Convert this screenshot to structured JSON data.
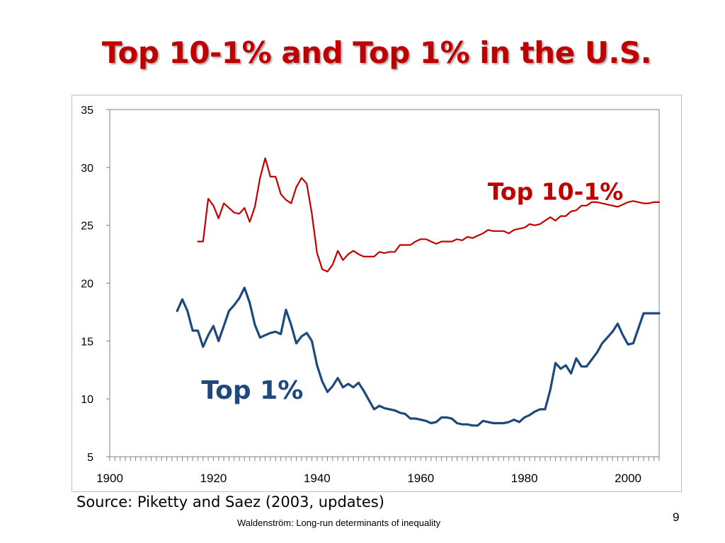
{
  "slide": {
    "title": "Top 10-1% and Top 1% in the U.S.",
    "source": "Source: Piketty and Saez (2003, updates)",
    "footer": "Waldenström: Long-run determinants of inequality",
    "page_number": "9"
  },
  "colors": {
    "title": "#c00000",
    "top10": "#c00000",
    "top1": "#1f497d"
  },
  "chart_data": {
    "type": "line",
    "title": "Top 10-1% and Top 1% in the U.S.",
    "xlabel": "",
    "ylabel": "",
    "xlim": [
      1900,
      2006
    ],
    "ylim": [
      5,
      35
    ],
    "x_ticks": [
      "1900",
      "1920",
      "1940",
      "1960",
      "1980",
      "2000"
    ],
    "y_ticks": [
      "5",
      "10",
      "15",
      "20",
      "25",
      "30",
      "35"
    ],
    "grid": false,
    "legend": "inline labels",
    "series": [
      {
        "name": "Top 10-1%",
        "x": [
          1917,
          1918,
          1919,
          1920,
          1921,
          1922,
          1923,
          1924,
          1925,
          1926,
          1927,
          1928,
          1929,
          1930,
          1931,
          1932,
          1933,
          1934,
          1935,
          1936,
          1937,
          1938,
          1939,
          1940,
          1941,
          1942,
          1943,
          1944,
          1945,
          1946,
          1947,
          1948,
          1949,
          1950,
          1951,
          1952,
          1953,
          1954,
          1955,
          1956,
          1957,
          1958,
          1959,
          1960,
          1961,
          1962,
          1963,
          1964,
          1965,
          1966,
          1967,
          1968,
          1969,
          1970,
          1971,
          1972,
          1973,
          1974,
          1975,
          1976,
          1977,
          1978,
          1979,
          1980,
          1981,
          1982,
          1983,
          1984,
          1985,
          1986,
          1987,
          1988,
          1989,
          1990,
          1991,
          1992,
          1993,
          1994,
          1995,
          1996,
          1997,
          1998,
          1999,
          2000,
          2001,
          2002,
          2003,
          2004,
          2005,
          2006
        ],
        "values": [
          23.6,
          23.6,
          27.3,
          26.7,
          25.6,
          26.9,
          26.5,
          26.1,
          26.0,
          26.5,
          25.3,
          26.6,
          29.1,
          30.8,
          29.2,
          29.2,
          27.7,
          27.2,
          26.9,
          28.3,
          29.1,
          28.6,
          26.0,
          22.6,
          21.2,
          21.0,
          21.6,
          22.8,
          22.0,
          22.5,
          22.8,
          22.5,
          22.3,
          22.3,
          22.3,
          22.7,
          22.6,
          22.7,
          22.7,
          23.3,
          23.3,
          23.3,
          23.6,
          23.8,
          23.8,
          23.6,
          23.4,
          23.6,
          23.6,
          23.6,
          23.8,
          23.7,
          24.0,
          23.9,
          24.1,
          24.3,
          24.6,
          24.5,
          24.5,
          24.5,
          24.3,
          24.6,
          24.7,
          24.8,
          25.1,
          25.0,
          25.1,
          25.4,
          25.7,
          25.4,
          25.8,
          25.8,
          26.2,
          26.3,
          26.7,
          26.7,
          27.0,
          27.0,
          26.9,
          26.8,
          26.7,
          26.6,
          26.8,
          27.0,
          27.1,
          27.0,
          26.9,
          26.9,
          27.0,
          27.0
        ]
      },
      {
        "name": "Top 1%",
        "x": [
          1913,
          1914,
          1915,
          1916,
          1917,
          1918,
          1919,
          1920,
          1921,
          1922,
          1923,
          1924,
          1925,
          1926,
          1927,
          1928,
          1929,
          1930,
          1931,
          1932,
          1933,
          1934,
          1935,
          1936,
          1937,
          1938,
          1939,
          1940,
          1941,
          1942,
          1943,
          1944,
          1945,
          1946,
          1947,
          1948,
          1949,
          1950,
          1951,
          1952,
          1953,
          1954,
          1955,
          1956,
          1957,
          1958,
          1959,
          1960,
          1961,
          1962,
          1963,
          1964,
          1965,
          1966,
          1967,
          1968,
          1969,
          1970,
          1971,
          1972,
          1973,
          1974,
          1975,
          1976,
          1977,
          1978,
          1979,
          1980,
          1981,
          1982,
          1983,
          1984,
          1985,
          1986,
          1987,
          1988,
          1989,
          1990,
          1991,
          1992,
          1993,
          1994,
          1995,
          1996,
          1997,
          1998,
          1999,
          2000,
          2001,
          2002,
          2003,
          2004,
          2005,
          2006
        ],
        "values": [
          17.6,
          18.6,
          17.6,
          15.9,
          15.9,
          14.5,
          15.5,
          16.3,
          15.0,
          16.3,
          17.6,
          18.1,
          18.7,
          19.6,
          18.3,
          16.4,
          15.3,
          15.5,
          15.7,
          15.8,
          15.6,
          17.7,
          16.4,
          14.8,
          15.4,
          15.7,
          15.0,
          12.9,
          11.5,
          10.6,
          11.1,
          11.8,
          11.0,
          11.3,
          11.0,
          11.4,
          10.7,
          9.9,
          9.1,
          9.4,
          9.2,
          9.1,
          9.0,
          8.8,
          8.7,
          8.3,
          8.3,
          8.2,
          8.1,
          7.9,
          8.0,
          8.4,
          8.4,
          8.3,
          7.9,
          7.8,
          7.8,
          7.7,
          7.7,
          8.1,
          8.0,
          7.9,
          7.9,
          7.9,
          8.0,
          8.2,
          8.0,
          8.4,
          8.6,
          8.9,
          9.1,
          9.1,
          10.8,
          13.1,
          12.6,
          12.9,
          12.2,
          13.5,
          12.8,
          12.8,
          13.4,
          14.0,
          14.8,
          15.3,
          15.8,
          16.5,
          15.5,
          14.7,
          14.8,
          16.1,
          17.4,
          17.4,
          17.4,
          17.4
        ]
      }
    ],
    "annotations": [
      {
        "text": "Top 10-1%",
        "series": "Top 10-1%",
        "x": 1986,
        "y": 27.2
      },
      {
        "text": "Top 1%",
        "series": "Top 1%",
        "x": 1927.5,
        "y": 10.0
      }
    ]
  }
}
